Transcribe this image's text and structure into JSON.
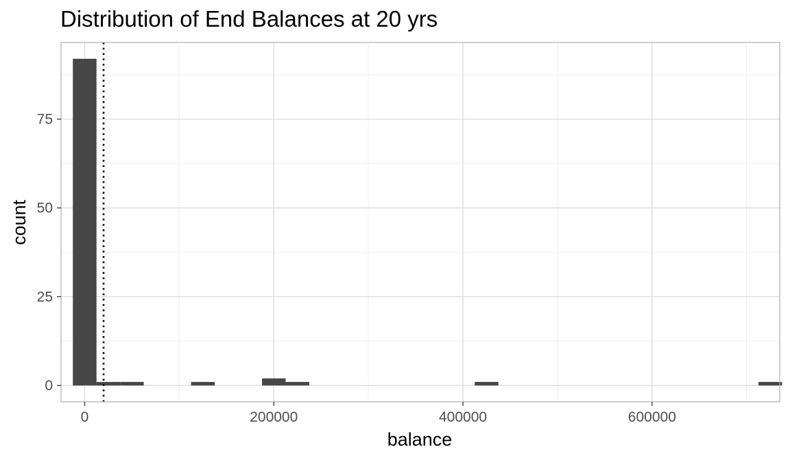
{
  "chart_data": {
    "type": "bar",
    "title": "Distribution of End Balances at 20 yrs",
    "xlabel": "balance",
    "ylabel": "count",
    "xlim": [
      -25000,
      735000
    ],
    "ylim": [
      -4.6,
      96.6
    ],
    "x_ticks_major": [
      0,
      200000,
      400000,
      600000
    ],
    "x_tick_labels": [
      "0",
      "200000",
      "400000",
      "600000"
    ],
    "x_ticks_minor": [
      100000,
      300000,
      500000,
      700000
    ],
    "y_ticks_major": [
      0,
      25,
      50,
      75
    ],
    "y_tick_labels": [
      "0",
      "25",
      "50",
      "75"
    ],
    "y_ticks_minor": [
      12.5,
      37.5,
      62.5,
      87.5
    ],
    "bins": [
      {
        "x0": -12500,
        "x1": 12500,
        "count": 92
      },
      {
        "x0": 12500,
        "x1": 37500,
        "count": 1
      },
      {
        "x0": 37500,
        "x1": 62500,
        "count": 1
      },
      {
        "x0": 112500,
        "x1": 137500,
        "count": 1
      },
      {
        "x0": 187500,
        "x1": 212500,
        "count": 2
      },
      {
        "x0": 212500,
        "x1": 237500,
        "count": 1
      },
      {
        "x0": 412500,
        "x1": 437500,
        "count": 1
      },
      {
        "x0": 712500,
        "x1": 737500,
        "count": 1
      }
    ],
    "vline": {
      "x": 20000,
      "style": "dotted"
    },
    "grid": true,
    "colors": {
      "bar": "#474747",
      "grid_major": "#dddddd",
      "grid_minor": "#eeeeee",
      "panel_border": "#b3b3b3",
      "vline": "#000000"
    }
  }
}
